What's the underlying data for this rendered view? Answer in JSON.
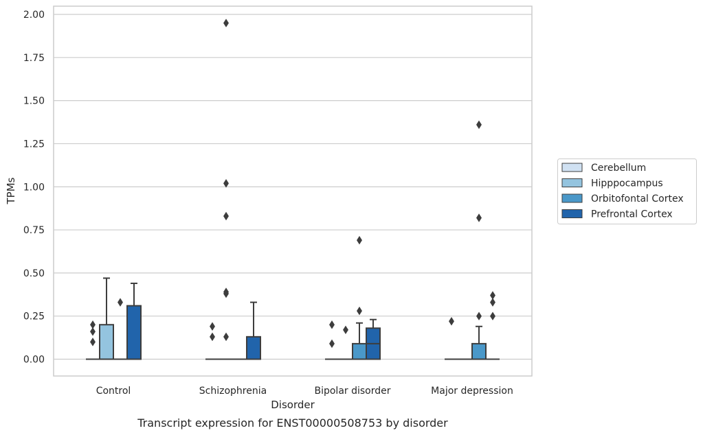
{
  "chart_data": {
    "type": "box",
    "title": "",
    "caption": "Transcript expression for ENST00000508753 by disorder",
    "xlabel": "Disorder",
    "ylabel": "TPMs",
    "ylim": [
      -0.1,
      2.05
    ],
    "yticks": [
      "0.00",
      "0.25",
      "0.50",
      "0.75",
      "1.00",
      "1.25",
      "1.50",
      "1.75",
      "2.00"
    ],
    "grid": "horizontal",
    "legend_position": "right",
    "categories": [
      "Control",
      "Schizophrenia",
      "Bipolar disorder",
      "Major depression"
    ],
    "series": [
      {
        "name": "Cerebellum",
        "color": "#d0e1f2",
        "boxes": [
          {
            "q1": 0,
            "median": 0,
            "q3": 0,
            "whisker_low": 0,
            "whisker_high": 0,
            "outliers": [
              0.1,
              0.16,
              0.2
            ]
          },
          {
            "q1": 0,
            "median": 0,
            "q3": 0,
            "whisker_low": 0,
            "whisker_high": 0,
            "outliers": [
              0.13,
              0.19
            ]
          },
          {
            "q1": 0,
            "median": 0,
            "q3": 0,
            "whisker_low": 0,
            "whisker_high": 0,
            "outliers": [
              0.09,
              0.2
            ]
          },
          {
            "q1": 0,
            "median": 0,
            "q3": 0,
            "whisker_low": 0,
            "whisker_high": 0,
            "outliers": [
              0.22
            ]
          }
        ]
      },
      {
        "name": "Hipppocampus",
        "color": "#94c4df",
        "boxes": [
          {
            "q1": 0,
            "median": 0,
            "q3": 0.2,
            "whisker_low": 0,
            "whisker_high": 0.47,
            "outliers": []
          },
          {
            "q1": 0,
            "median": 0,
            "q3": 0,
            "whisker_low": 0,
            "whisker_high": 0,
            "outliers": [
              0.13,
              0.38,
              0.39,
              0.83,
              1.02,
              1.95
            ]
          },
          {
            "q1": 0,
            "median": 0,
            "q3": 0,
            "whisker_low": 0,
            "whisker_high": 0,
            "outliers": [
              0.17
            ]
          },
          {
            "q1": 0,
            "median": 0,
            "q3": 0,
            "whisker_low": 0,
            "whisker_high": 0,
            "outliers": []
          }
        ]
      },
      {
        "name": "Orbitofontal Cortex",
        "color": "#4a98c9",
        "boxes": [
          {
            "q1": 0,
            "median": 0,
            "q3": 0,
            "whisker_low": 0,
            "whisker_high": 0,
            "outliers": [
              0.33
            ]
          },
          {
            "q1": 0,
            "median": 0,
            "q3": 0,
            "whisker_low": 0,
            "whisker_high": 0,
            "outliers": []
          },
          {
            "q1": 0,
            "median": 0,
            "q3": 0.09,
            "whisker_low": 0,
            "whisker_high": 0.21,
            "outliers": [
              0.28,
              0.69
            ]
          },
          {
            "q1": 0,
            "median": 0,
            "q3": 0.09,
            "whisker_low": 0,
            "whisker_high": 0.19,
            "outliers": [
              0.25,
              0.82,
              1.36
            ]
          }
        ]
      },
      {
        "name": "Prefrontal Cortex",
        "color": "#2164ab",
        "boxes": [
          {
            "q1": 0,
            "median": 0,
            "q3": 0.31,
            "whisker_low": 0,
            "whisker_high": 0.44,
            "outliers": []
          },
          {
            "q1": 0,
            "median": 0,
            "q3": 0.13,
            "whisker_low": 0,
            "whisker_high": 0.33,
            "outliers": []
          },
          {
            "q1": 0,
            "median": 0.09,
            "q3": 0.18,
            "whisker_low": 0,
            "whisker_high": 0.23,
            "outliers": []
          },
          {
            "q1": 0,
            "median": 0,
            "q3": 0,
            "whisker_low": 0,
            "whisker_high": 0,
            "outliers": [
              0.25,
              0.33,
              0.37
            ]
          }
        ]
      }
    ]
  }
}
